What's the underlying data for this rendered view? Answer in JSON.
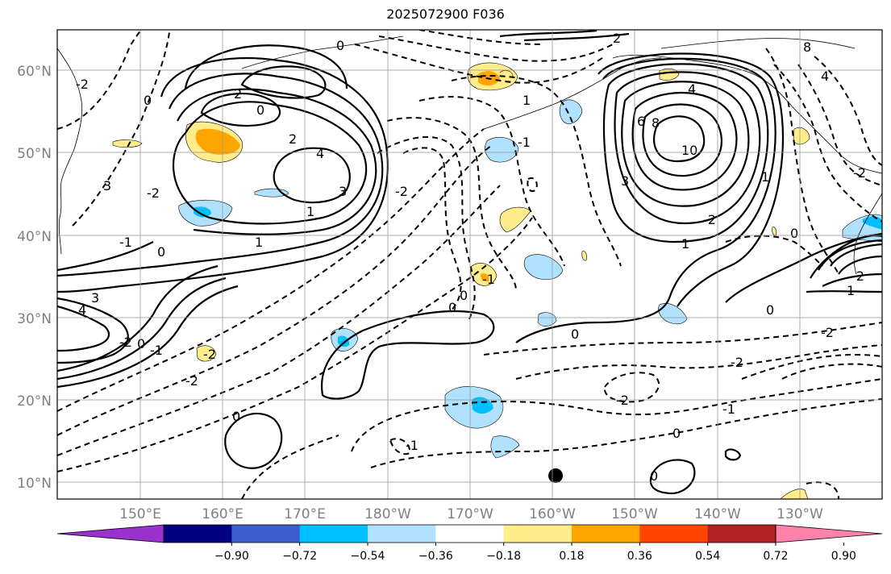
{
  "title": "2025072900 F036",
  "map": {
    "lat_labels": [
      "60°N",
      "50°N",
      "40°N",
      "30°N",
      "20°N",
      "10°N"
    ],
    "lon_labels": [
      "150°E",
      "160°E",
      "170°E",
      "180°W",
      "170°W",
      "160°W",
      "150°W",
      "140°W",
      "130°W"
    ],
    "grid": true,
    "marker": {
      "label": "dot",
      "lon": -160,
      "lat": 11
    }
  },
  "colorbar": {
    "colors": [
      "#9932CC",
      "#000080",
      "#3A5FCD",
      "#00BFFF",
      "#B0E2FF",
      "#FFFFFF",
      "#FFEC8B",
      "#FFA500",
      "#FF4500",
      "#B22222",
      "#FF82AB"
    ],
    "tick_labels": [
      "−0.90",
      "−0.72",
      "−0.54",
      "−0.36",
      "−0.18",
      "0.18",
      "0.36",
      "0.54",
      "0.72",
      "0.90"
    ]
  },
  "contour_labels": [
    "0",
    "2",
    "4",
    "6",
    "8",
    "10",
    "1",
    "3",
    "-1",
    "-2"
  ]
}
